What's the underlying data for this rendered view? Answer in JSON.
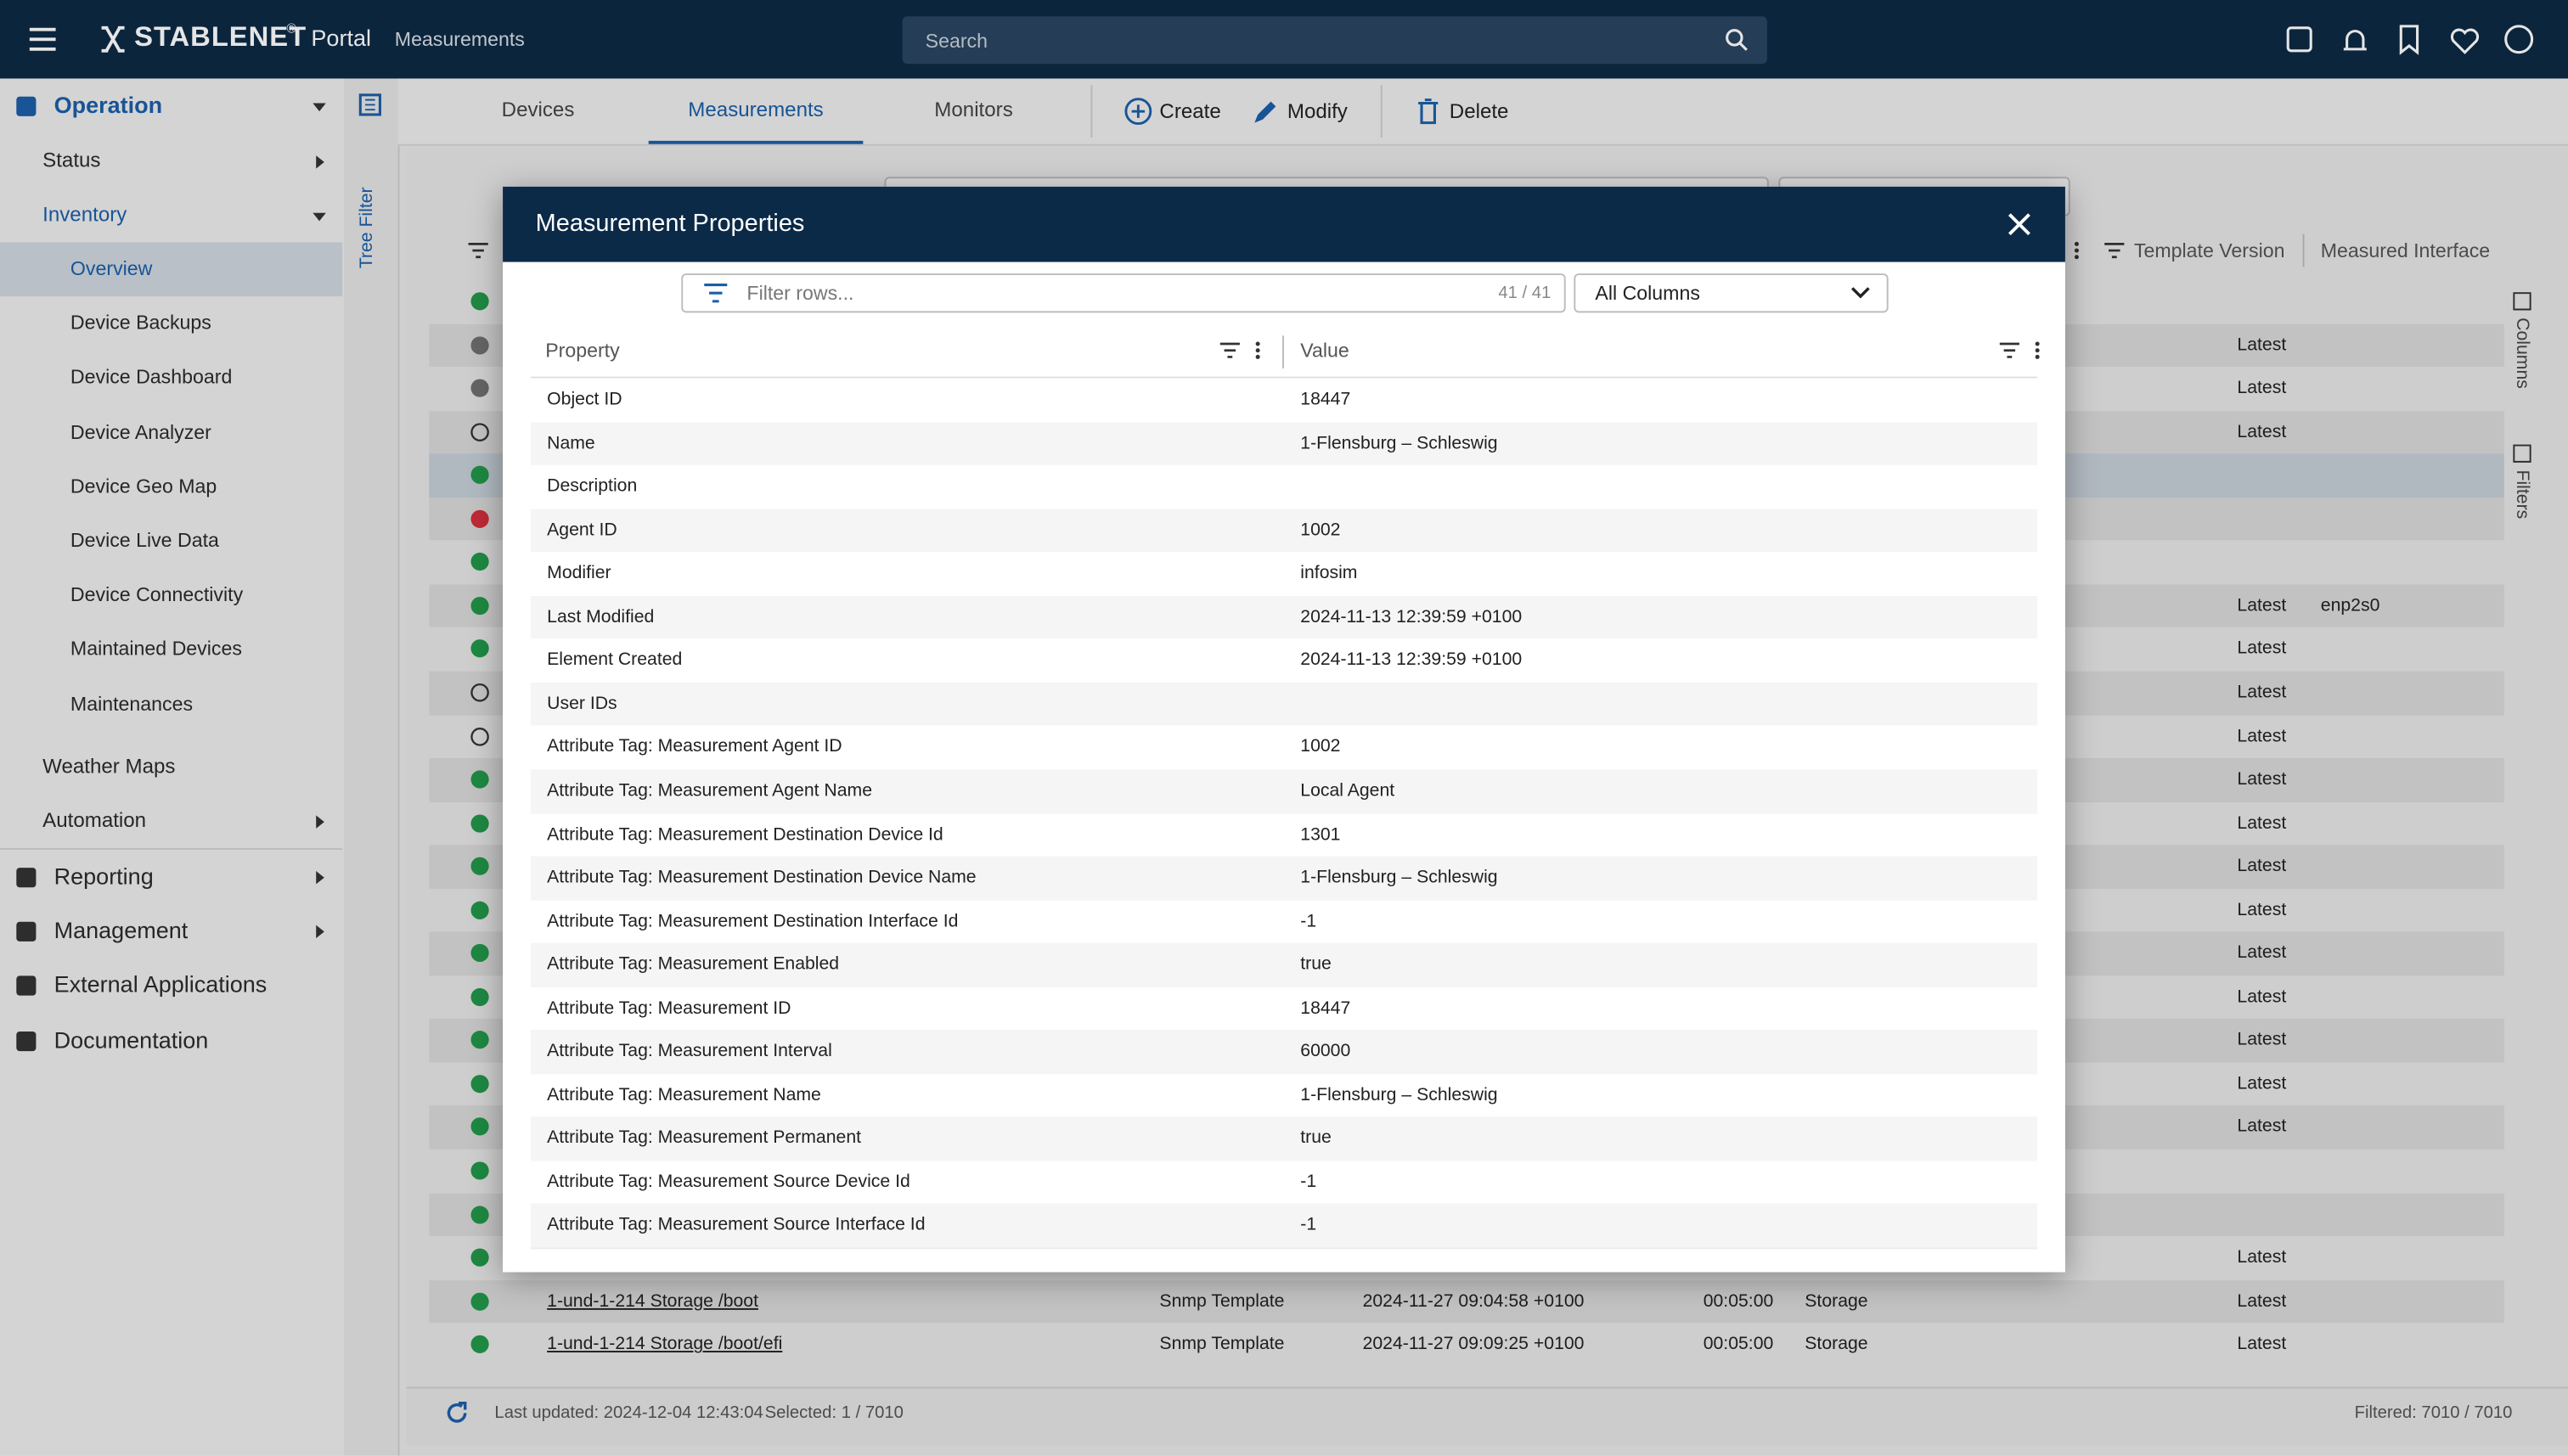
{
  "header": {
    "brand": "STABLENET",
    "brand_mark": "®",
    "portal": "Portal",
    "section": "Measurements",
    "search_placeholder": "Search"
  },
  "sidebar": [
    {
      "label": "Operation",
      "level": 0,
      "arrow": "down"
    },
    {
      "label": "Status",
      "level": 1,
      "arrow": "right"
    },
    {
      "label": "Inventory",
      "level": 1,
      "arrow": "down"
    },
    {
      "label": "Overview",
      "level": 2,
      "selected": true
    },
    {
      "label": "Device Backups",
      "level": 2
    },
    {
      "label": "Device Dashboard",
      "level": 2
    },
    {
      "label": "Device Analyzer",
      "level": 2
    },
    {
      "label": "Device Geo Map",
      "level": 2
    },
    {
      "label": "Device Live Data",
      "level": 2
    },
    {
      "label": "Device Connectivity",
      "level": 2
    },
    {
      "label": "Maintained Devices",
      "level": 2
    },
    {
      "label": "Maintenances",
      "level": 2
    },
    {
      "label": "Weather Maps",
      "level": 1
    },
    {
      "label": "Automation",
      "level": 1,
      "arrow": "right"
    },
    {
      "label": "Reporting",
      "level": 0,
      "arrow": "right"
    },
    {
      "label": "Management",
      "level": 0,
      "arrow": "right"
    },
    {
      "label": "External Applications",
      "level": 0
    },
    {
      "label": "Documentation",
      "level": 0
    }
  ],
  "tree_filter": "Tree Filter",
  "tabs": [
    "Devices",
    "Measurements",
    "Monitors"
  ],
  "active_tab": 1,
  "actions": [
    "Create",
    "Modify",
    "Delete"
  ],
  "side_panels": [
    "Columns",
    "Filters"
  ],
  "table": {
    "columns": [
      "Template Version",
      "Measured Interface"
    ],
    "rows": [
      {
        "status": "green"
      },
      {
        "status": "gray",
        "version": "Latest"
      },
      {
        "status": "gray",
        "version": "Latest"
      },
      {
        "status": "none",
        "version": "Latest"
      },
      {
        "status": "green",
        "selected": true
      },
      {
        "status": "red"
      },
      {
        "status": "green"
      },
      {
        "status": "green",
        "version": "Latest",
        "interface": "enp2s0"
      },
      {
        "status": "green",
        "version": "Latest"
      },
      {
        "status": "none",
        "version": "Latest"
      },
      {
        "status": "none",
        "version": "Latest"
      },
      {
        "status": "green",
        "version": "Latest"
      },
      {
        "status": "green",
        "version": "Latest"
      },
      {
        "status": "green",
        "version": "Latest"
      },
      {
        "status": "green",
        "version": "Latest"
      },
      {
        "status": "green",
        "version": "Latest"
      },
      {
        "status": "green",
        "version": "Latest"
      },
      {
        "status": "green",
        "version": "Latest"
      },
      {
        "status": "green",
        "version": "Latest"
      },
      {
        "status": "green",
        "version": "Latest"
      },
      {
        "status": "green"
      },
      {
        "status": "green"
      },
      {
        "status": "green",
        "version": "Latest"
      },
      {
        "status": "green",
        "name": "1-und-1-214 Storage /boot",
        "type": "Snmp Template",
        "created": "2024-11-27 09:04:58 +0100",
        "interval": "00:05:00",
        "category": "Storage",
        "version": "Latest"
      },
      {
        "status": "green",
        "name": "1-und-1-214 Storage /boot/efi",
        "type": "Snmp Template",
        "created": "2024-11-27 09:09:25 +0100",
        "interval": "00:05:00",
        "category": "Storage",
        "version": "Latest"
      }
    ]
  },
  "status_bar": {
    "last_updated": "Last updated: 2024-12-04 12:43:04",
    "selected": "Selected: 1 / 7010",
    "filtered": "Filtered: 7010 / 7010"
  },
  "modal": {
    "title": "Measurement Properties",
    "filter_placeholder": "Filter rows...",
    "count": "41 / 41",
    "column_select": "All Columns",
    "headers": [
      "Property",
      "Value"
    ],
    "rows": [
      [
        "Object ID",
        "18447"
      ],
      [
        "Name",
        "1-Flensburg – Schleswig"
      ],
      [
        "Description",
        null
      ],
      [
        "Agent ID",
        "1002"
      ],
      [
        "Modifier",
        "infosim"
      ],
      [
        "Last Modified",
        "2024-11-13 12:39:59 +0100"
      ],
      [
        "Element Created",
        "2024-11-13 12:39:59 +0100"
      ],
      [
        "User IDs",
        null
      ],
      [
        "Attribute Tag: Measurement Agent ID",
        "1002"
      ],
      [
        "Attribute Tag: Measurement Agent Name",
        "Local Agent"
      ],
      [
        "Attribute Tag: Measurement Destination Device Id",
        "1301"
      ],
      [
        "Attribute Tag: Measurement Destination Device Name",
        "1-Flensburg – Schleswig"
      ],
      [
        "Attribute Tag: Measurement Destination Interface Id",
        "-1"
      ],
      [
        "Attribute Tag: Measurement Enabled",
        "true"
      ],
      [
        "Attribute Tag: Measurement ID",
        "18447"
      ],
      [
        "Attribute Tag: Measurement Interval",
        "60000"
      ],
      [
        "Attribute Tag: Measurement Name",
        "1-Flensburg – Schleswig"
      ],
      [
        "Attribute Tag: Measurement Permanent",
        "true"
      ],
      [
        "Attribute Tag: Measurement Source Device Id",
        "-1"
      ],
      [
        "Attribute Tag: Measurement Source Interface Id",
        "-1"
      ]
    ]
  }
}
